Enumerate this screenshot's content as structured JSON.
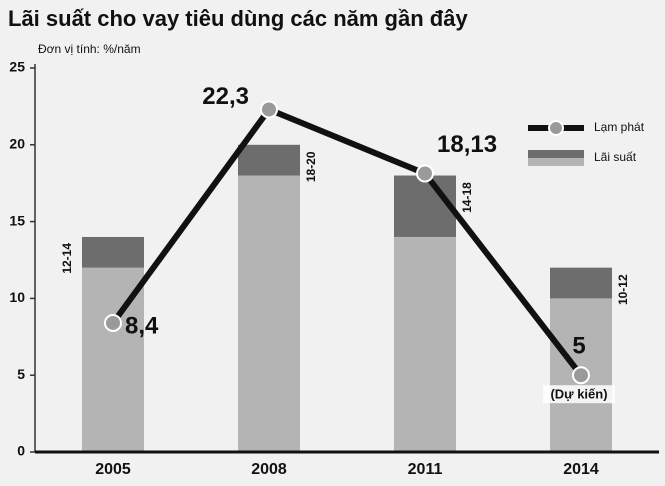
{
  "chart_data": {
    "type": "range_bar_line",
    "title": "Lãi suất cho vay tiêu dùng các năm gần đây",
    "subtitle": "Đơn vị tính: %/năm",
    "categories": [
      "2005",
      "2008",
      "2011",
      "2014"
    ],
    "bars": {
      "name": "Lãi suất",
      "low": [
        12,
        18,
        14,
        10
      ],
      "high": [
        14,
        20,
        18,
        12
      ],
      "range_labels": [
        "12-14",
        "18-20",
        "14-18",
        "10-12"
      ],
      "color_low": "#b4b4b4",
      "color_high": "#6d6d6d"
    },
    "line": {
      "name": "Lạm phát",
      "values": [
        8.4,
        22.3,
        18.13,
        5
      ],
      "value_labels": [
        "8,4",
        "22,3",
        "18,13",
        "5"
      ],
      "color": "#111111",
      "marker_color": "#9a9a9a"
    },
    "annotation": "(Dự kiến)",
    "ylim": [
      0,
      25
    ],
    "yticks": [
      0,
      5,
      10,
      15,
      20,
      25
    ],
    "legend": "upper right",
    "grid": false
  }
}
